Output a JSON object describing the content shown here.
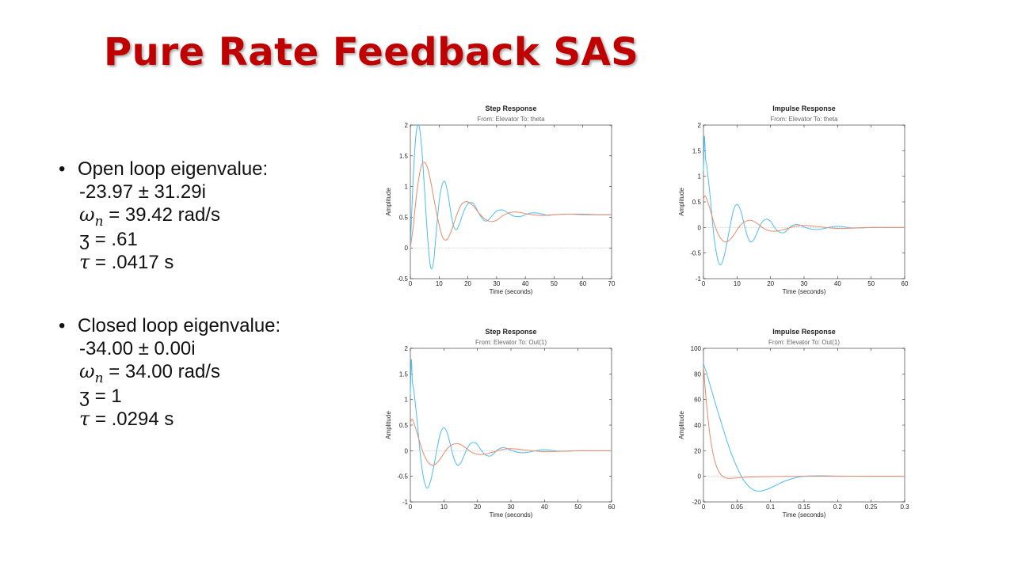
{
  "slide": {
    "title": "Pure Rate Feedback SAS",
    "open_loop": {
      "heading": "Open loop eigenvalue:",
      "eigen": "-23.97 ± 31.29i",
      "wn_value": "= 39.42 rad/s",
      "zeta_line": "ʒ = .61",
      "tau_value": "= .0417 s"
    },
    "closed_loop": {
      "heading": "Closed loop eigenvalue:",
      "eigen": "-34.00 ± 0.00i",
      "wn_value": "= 34.00 rad/s",
      "zeta_line": "ʒ = 1",
      "tau_value": "= .0294 s"
    },
    "symbols": {
      "omega": "ω",
      "n": "n",
      "tau": "τ"
    }
  },
  "colors": {
    "title": "#c00000",
    "blue": "#4dbeee",
    "orange": "#e8896a"
  },
  "chart_data": [
    {
      "type": "line",
      "title": "Step Response",
      "subtitle": "From: Elevator  To: theta",
      "xlabel": "Time (seconds)",
      "ylabel": "Amplitude",
      "xlim": [
        0,
        70
      ],
      "ylim": [
        -0.5,
        2
      ],
      "xticks": [
        "0",
        "10",
        "20",
        "30",
        "40",
        "50",
        "60",
        "70"
      ],
      "yticks": [
        "-0.5",
        "0",
        "0.5",
        "1",
        "1.5",
        "2"
      ],
      "series": [
        {
          "color": "#4dbeee",
          "x": [
            0,
            1,
            2,
            3,
            4,
            5,
            6,
            7,
            8,
            9,
            10,
            11,
            12,
            13,
            14,
            15,
            16,
            17,
            18,
            19,
            20,
            21,
            22,
            23,
            24,
            25,
            26,
            27,
            28,
            30,
            32,
            34,
            36,
            38,
            40,
            42,
            44,
            46,
            48,
            50,
            55,
            60,
            65,
            70
          ],
          "y": [
            0,
            1.15,
            1.86,
            1.99,
            1.6,
            0.9,
            0.18,
            -0.3,
            -0.25,
            0.25,
            0.75,
            1.02,
            1.08,
            0.9,
            0.6,
            0.36,
            0.3,
            0.38,
            0.52,
            0.64,
            0.72,
            0.74,
            0.72,
            0.64,
            0.55,
            0.48,
            0.44,
            0.45,
            0.5,
            0.6,
            0.62,
            0.57,
            0.52,
            0.51,
            0.54,
            0.57,
            0.57,
            0.55,
            0.53,
            0.54,
            0.55,
            0.55,
            0.54,
            0.54
          ]
        },
        {
          "color": "#e8896a",
          "x": [
            0,
            1,
            2,
            3,
            4,
            5,
            6,
            7,
            8,
            9,
            10,
            11,
            12,
            13,
            14,
            15,
            16,
            17,
            18,
            19,
            20,
            22,
            24,
            26,
            28,
            30,
            32,
            35,
            38,
            41,
            45,
            50,
            55,
            60,
            65,
            70
          ],
          "y": [
            0,
            0.35,
            0.8,
            1.15,
            1.36,
            1.39,
            1.3,
            1.1,
            0.85,
            0.6,
            0.38,
            0.2,
            0.13,
            0.15,
            0.25,
            0.38,
            0.52,
            0.64,
            0.72,
            0.75,
            0.75,
            0.68,
            0.56,
            0.47,
            0.43,
            0.45,
            0.52,
            0.58,
            0.58,
            0.55,
            0.53,
            0.54,
            0.55,
            0.54,
            0.54,
            0.54
          ]
        }
      ]
    },
    {
      "type": "line",
      "title": "Impulse Response",
      "subtitle": "From: Elevator  To: theta",
      "xlabel": "Time (seconds)",
      "ylabel": "Amplitude",
      "xlim": [
        0,
        60
      ],
      "ylim": [
        -1,
        2
      ],
      "xticks": [
        "0",
        "10",
        "20",
        "30",
        "40",
        "50",
        "60"
      ],
      "yticks": [
        "-1",
        "-0.5",
        "0",
        "0.5",
        "1",
        "1.5",
        "2"
      ],
      "series": [
        {
          "color": "#4dbeee",
          "x": [
            0,
            0.3,
            0.6,
            1,
            2,
            3,
            4,
            5,
            6,
            7,
            8,
            9,
            10,
            11,
            12,
            13,
            14,
            15,
            16,
            17,
            18,
            19,
            20,
            21,
            22,
            23,
            24,
            25,
            26,
            27,
            28,
            29,
            30,
            32,
            34,
            36,
            38,
            40,
            42,
            44,
            46,
            50,
            55,
            60
          ],
          "y": [
            1.1,
            1.78,
            1.35,
            1.2,
            0.6,
            -0.1,
            -0.55,
            -0.73,
            -0.6,
            -0.3,
            0.05,
            0.35,
            0.45,
            0.35,
            0.1,
            -0.15,
            -0.28,
            -0.24,
            -0.1,
            0.05,
            0.14,
            0.16,
            0.12,
            0.02,
            -0.06,
            -0.1,
            -0.1,
            -0.05,
            0.02,
            0.05,
            0.06,
            0.04,
            0.01,
            -0.03,
            -0.04,
            -0.02,
            0.01,
            0.02,
            0.01,
            -0.01,
            -0.01,
            0,
            0,
            0
          ]
        },
        {
          "color": "#e8896a",
          "x": [
            0,
            0.5,
            1,
            2,
            3,
            4,
            5,
            6,
            7,
            8,
            9,
            10,
            11,
            12,
            13,
            14,
            15,
            16,
            17,
            18,
            19,
            20,
            22,
            24,
            26,
            28,
            30,
            32,
            35,
            38,
            41,
            45,
            50,
            55,
            60
          ],
          "y": [
            0.55,
            0.62,
            0.55,
            0.35,
            0.12,
            -0.07,
            -0.2,
            -0.27,
            -0.28,
            -0.23,
            -0.15,
            -0.05,
            0.04,
            0.1,
            0.13,
            0.14,
            0.12,
            0.08,
            0.03,
            -0.02,
            -0.05,
            -0.07,
            -0.07,
            -0.04,
            0,
            0.03,
            0.04,
            0.03,
            0.01,
            -0.01,
            -0.02,
            -0.01,
            0,
            0,
            0
          ]
        }
      ]
    },
    {
      "type": "line",
      "title": "Step Response",
      "subtitle": "From: Elevator  To: Out(1)",
      "xlabel": "Time (seconds)",
      "ylabel": "Amplitude",
      "xlim": [
        0,
        60
      ],
      "ylim": [
        -1,
        2
      ],
      "xticks": [
        "0",
        "10",
        "20",
        "30",
        "40",
        "50",
        "60"
      ],
      "yticks": [
        "-1",
        "-0.5",
        "0",
        "0.5",
        "1",
        "1.5",
        "2"
      ],
      "series": [
        {
          "color": "#4dbeee",
          "x": [
            0,
            0.3,
            0.6,
            1,
            2,
            3,
            4,
            5,
            6,
            7,
            8,
            9,
            10,
            11,
            12,
            13,
            14,
            15,
            16,
            17,
            18,
            19,
            20,
            21,
            22,
            23,
            24,
            25,
            26,
            27,
            28,
            29,
            30,
            32,
            34,
            36,
            38,
            40,
            42,
            44,
            46,
            50,
            55,
            60
          ],
          "y": [
            1.1,
            1.78,
            1.35,
            1.2,
            0.6,
            -0.1,
            -0.55,
            -0.73,
            -0.6,
            -0.3,
            0.05,
            0.35,
            0.45,
            0.35,
            0.1,
            -0.15,
            -0.28,
            -0.24,
            -0.1,
            0.05,
            0.14,
            0.16,
            0.12,
            0.02,
            -0.06,
            -0.1,
            -0.1,
            -0.05,
            0.02,
            0.05,
            0.06,
            0.04,
            0.01,
            -0.03,
            -0.04,
            -0.02,
            0.01,
            0.02,
            0.01,
            -0.01,
            -0.01,
            0,
            0,
            0
          ]
        },
        {
          "color": "#e8896a",
          "x": [
            0,
            0.5,
            1,
            2,
            3,
            4,
            5,
            6,
            7,
            8,
            9,
            10,
            11,
            12,
            13,
            14,
            15,
            16,
            17,
            18,
            19,
            20,
            22,
            24,
            26,
            28,
            30,
            32,
            35,
            38,
            41,
            45,
            50,
            55,
            60
          ],
          "y": [
            0.55,
            0.62,
            0.55,
            0.35,
            0.12,
            -0.07,
            -0.2,
            -0.27,
            -0.28,
            -0.23,
            -0.15,
            -0.05,
            0.04,
            0.1,
            0.13,
            0.14,
            0.12,
            0.08,
            0.03,
            -0.02,
            -0.05,
            -0.07,
            -0.07,
            -0.04,
            0,
            0.03,
            0.04,
            0.03,
            0.01,
            -0.01,
            -0.02,
            -0.01,
            0,
            0,
            0
          ]
        }
      ]
    },
    {
      "type": "line",
      "title": "Impulse Response",
      "subtitle": "From: Elevator  To: Out(1)",
      "xlabel": "Time (seconds)",
      "ylabel": "Amplitude",
      "xlim": [
        0,
        0.3
      ],
      "ylim": [
        -20,
        100
      ],
      "xticks": [
        "0",
        "0.05",
        "0.1",
        "0.15",
        "0.2",
        "0.25",
        "0.3"
      ],
      "yticks": [
        "-20",
        "0",
        "20",
        "40",
        "60",
        "80",
        "100"
      ],
      "series": [
        {
          "color": "#4dbeee",
          "x": [
            0,
            0.005,
            0.01,
            0.02,
            0.03,
            0.04,
            0.05,
            0.06,
            0.07,
            0.08,
            0.09,
            0.1,
            0.11,
            0.12,
            0.13,
            0.14,
            0.15,
            0.16,
            0.18,
            0.2,
            0.22,
            0.25,
            0.28,
            0.3
          ],
          "y": [
            88,
            80,
            71,
            53,
            36,
            20,
            7,
            -3,
            -9,
            -11.5,
            -11,
            -9,
            -6.5,
            -4,
            -2.2,
            -0.8,
            0,
            0.3,
            0.4,
            0.2,
            0.1,
            0,
            0,
            0
          ]
        },
        {
          "color": "#e8896a",
          "x": [
            0,
            0.003,
            0.006,
            0.01,
            0.015,
            0.02,
            0.025,
            0.03,
            0.035,
            0.04,
            0.05,
            0.06,
            0.08,
            0.1,
            0.15,
            0.2,
            0.25,
            0.3
          ],
          "y": [
            86,
            66,
            49,
            31,
            16,
            7,
            2,
            -0.5,
            -1.5,
            -1.6,
            -1.2,
            -0.8,
            -0.4,
            -0.2,
            0,
            0,
            0,
            0
          ]
        }
      ]
    }
  ]
}
